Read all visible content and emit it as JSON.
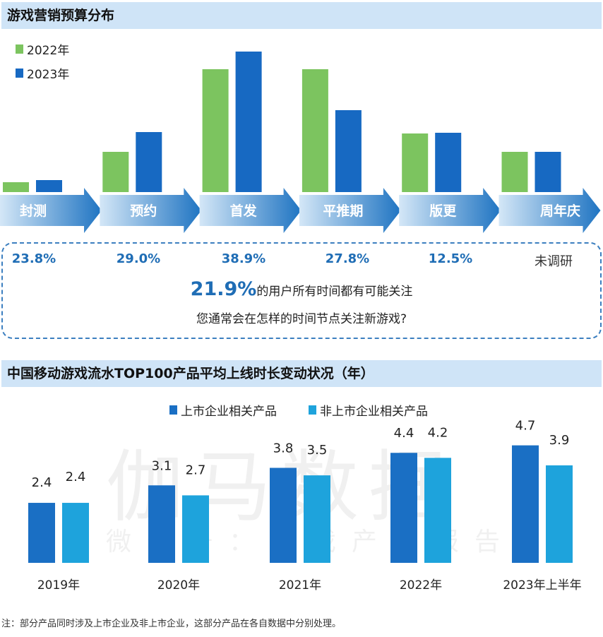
{
  "chart_data": [
    {
      "type": "bar",
      "title": "游戏营销预算分布",
      "categories": [
        "封测",
        "预约",
        "首发",
        "平推期",
        "版更",
        "周年庆"
      ],
      "series": [
        {
          "name": "2022年",
          "color": "#7cc45f",
          "values": [
            14,
            57,
            174,
            174,
            83,
            57
          ]
        },
        {
          "name": "2023年",
          "color": "#1769c2",
          "values": [
            17,
            85,
            199,
            116,
            84,
            57
          ]
        }
      ],
      "note": "relative bar heights, no axis printed",
      "attention_share": [
        "23.8%",
        "29.0%",
        "38.9%",
        "27.8%",
        "12.5%",
        "未调研"
      ],
      "highlight_value": "21.9%",
      "highlight_text": "的用户所有时间都有可能关注",
      "question": "您通常会在怎样的时间节点关注新游戏?",
      "grid": false,
      "legend": "top-left"
    },
    {
      "type": "bar",
      "title": "中国移动游戏流水TOP100产品平均上线时长变动状况（年）",
      "categories": [
        "2019年",
        "2020年",
        "2021年",
        "2022年",
        "2023年上半年"
      ],
      "series": [
        {
          "name": "上市企业相关产品",
          "color": "#1a6fc4",
          "values": [
            2.4,
            3.1,
            3.8,
            4.4,
            4.7
          ]
        },
        {
          "name": "非上市企业相关产品",
          "color": "#1ea3dc",
          "values": [
            2.4,
            2.7,
            3.5,
            4.2,
            3.9
          ]
        }
      ],
      "grid": false,
      "legend": "top-center"
    }
  ],
  "watermark": {
    "main": "伽马数据",
    "sub": "微信号：游戏产业报告"
  },
  "footnote": "注：部分产品同时涉及上市企业及非上市企业，这部分产品在各自数据中分别处理。"
}
